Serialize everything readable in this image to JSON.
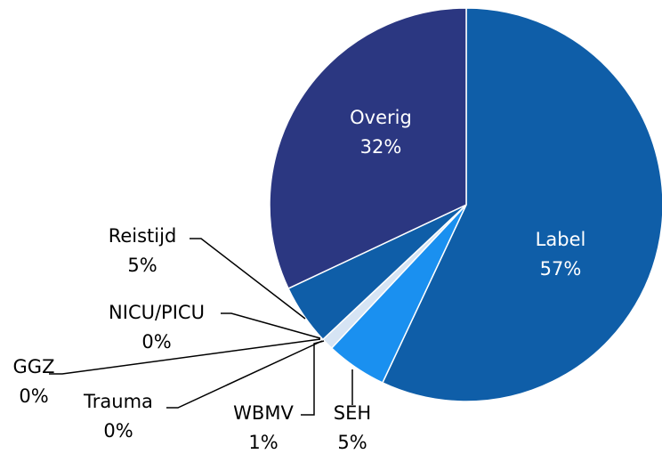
{
  "chart_data": {
    "type": "pie",
    "categories": [
      "Label",
      "SEH",
      "WBMV",
      "Trauma",
      "GGZ",
      "NICU/PICU",
      "Reistijd",
      "Overig"
    ],
    "values": [
      57,
      5,
      1,
      0,
      0,
      0,
      5,
      32
    ],
    "value_labels": [
      "57%",
      "5%",
      "1%",
      "0%",
      "0%",
      "0%",
      "5%",
      "32%"
    ],
    "colors": [
      "#0f5ea8",
      "#1a90f0",
      "#d6e4f4",
      "#0f5ea8",
      "#0f5ea8",
      "#0f5ea8",
      "#0f5ea8",
      "#2b3781"
    ]
  }
}
